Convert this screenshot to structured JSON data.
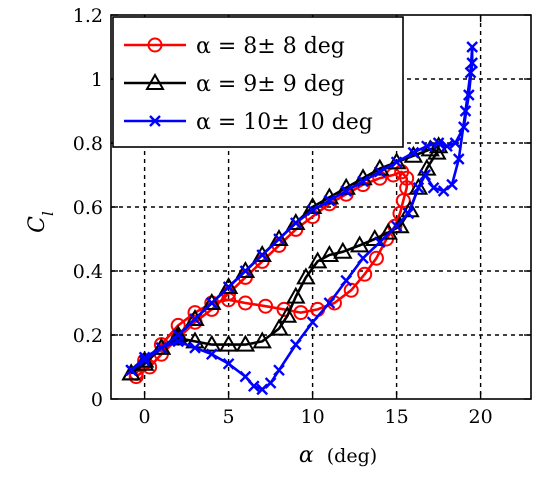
{
  "chart_data": {
    "type": "line",
    "title": "",
    "xlabel": "α",
    "xlabel_unit": "(deg)",
    "ylabel": "C",
    "ylabel_sub": "l",
    "xlim": [
      -2,
      23
    ],
    "ylim": [
      0,
      1.2
    ],
    "x_ticks": [
      0,
      5,
      10,
      15,
      20
    ],
    "y_ticks": [
      0,
      0.2,
      0.4,
      0.6,
      0.8,
      1,
      1.2
    ],
    "x_tick_labels": [
      "0",
      "5",
      "10",
      "15",
      "20"
    ],
    "y_tick_labels": [
      "0",
      "0.2",
      "0.4",
      "0.6",
      "0.8",
      "1",
      "1.2"
    ],
    "grid": true,
    "legend_position": "top-left",
    "series": [
      {
        "name": "α = 8± 8 deg",
        "color": "#ff0000",
        "marker": "circle",
        "points": [
          [
            -0.5,
            0.07
          ],
          [
            0.3,
            0.1
          ],
          [
            1,
            0.14
          ],
          [
            2,
            0.19
          ],
          [
            3,
            0.24
          ],
          [
            4,
            0.28
          ],
          [
            5,
            0.33
          ],
          [
            6,
            0.38
          ],
          [
            7,
            0.43
          ],
          [
            8,
            0.48
          ],
          [
            9,
            0.53
          ],
          [
            10,
            0.57
          ],
          [
            11,
            0.61
          ],
          [
            12,
            0.64
          ],
          [
            13,
            0.67
          ],
          [
            14,
            0.69
          ],
          [
            14.8,
            0.7
          ],
          [
            15.3,
            0.71
          ],
          [
            15.6,
            0.69
          ],
          [
            15.6,
            0.66
          ],
          [
            15.4,
            0.62
          ],
          [
            15.2,
            0.58
          ],
          [
            14.9,
            0.54
          ],
          [
            14.4,
            0.5
          ],
          [
            13.8,
            0.44
          ],
          [
            13.1,
            0.39
          ],
          [
            12.3,
            0.34
          ],
          [
            11.3,
            0.3
          ],
          [
            10.3,
            0.28
          ],
          [
            9.3,
            0.27
          ],
          [
            8.3,
            0.28
          ],
          [
            7.2,
            0.29
          ],
          [
            6,
            0.3
          ],
          [
            5,
            0.31
          ],
          [
            4,
            0.3
          ],
          [
            3,
            0.27
          ],
          [
            2,
            0.23
          ],
          [
            1,
            0.17
          ],
          [
            0,
            0.12
          ],
          [
            -0.5,
            0.08
          ]
        ]
      },
      {
        "name": "α = 9± 9 deg",
        "color": "#000000",
        "marker": "triangle",
        "points": [
          [
            -0.8,
            0.08
          ],
          [
            0,
            0.12
          ],
          [
            1,
            0.16
          ],
          [
            2,
            0.2
          ],
          [
            3,
            0.25
          ],
          [
            4,
            0.3
          ],
          [
            5,
            0.35
          ],
          [
            6,
            0.4
          ],
          [
            7,
            0.45
          ],
          [
            8,
            0.5
          ],
          [
            9,
            0.55
          ],
          [
            10,
            0.6
          ],
          [
            11,
            0.63
          ],
          [
            12,
            0.66
          ],
          [
            13,
            0.69
          ],
          [
            14,
            0.72
          ],
          [
            15,
            0.74
          ],
          [
            16,
            0.76
          ],
          [
            17,
            0.78
          ],
          [
            17.5,
            0.79
          ],
          [
            17.4,
            0.77
          ],
          [
            16.8,
            0.72
          ],
          [
            16.3,
            0.66
          ],
          [
            15.8,
            0.59
          ],
          [
            15.2,
            0.54
          ],
          [
            14.5,
            0.52
          ],
          [
            13.7,
            0.5
          ],
          [
            12.8,
            0.48
          ],
          [
            11.8,
            0.46
          ],
          [
            11,
            0.45
          ],
          [
            10.3,
            0.43
          ],
          [
            9.6,
            0.38
          ],
          [
            9,
            0.32
          ],
          [
            8.5,
            0.26
          ],
          [
            8,
            0.22
          ],
          [
            7,
            0.18
          ],
          [
            6,
            0.17
          ],
          [
            5,
            0.17
          ],
          [
            4,
            0.17
          ],
          [
            3,
            0.18
          ],
          [
            2,
            0.19
          ],
          [
            1,
            0.16
          ],
          [
            0,
            0.11
          ],
          [
            -0.8,
            0.08
          ]
        ]
      },
      {
        "name": "α = 10± 10 deg",
        "color": "#0000ff",
        "marker": "cross",
        "points": [
          [
            -0.8,
            0.09
          ],
          [
            0,
            0.13
          ],
          [
            1,
            0.16
          ],
          [
            2,
            0.2
          ],
          [
            3,
            0.25
          ],
          [
            4,
            0.3
          ],
          [
            5,
            0.35
          ],
          [
            6,
            0.4
          ],
          [
            7,
            0.45
          ],
          [
            8,
            0.5
          ],
          [
            9,
            0.55
          ],
          [
            10,
            0.59
          ],
          [
            11,
            0.62
          ],
          [
            12,
            0.65
          ],
          [
            13,
            0.68
          ],
          [
            14,
            0.71
          ],
          [
            15,
            0.74
          ],
          [
            16,
            0.77
          ],
          [
            16.8,
            0.79
          ],
          [
            17.5,
            0.8
          ],
          [
            18,
            0.79
          ],
          [
            18.5,
            0.8
          ],
          [
            19,
            0.85
          ],
          [
            19.3,
            0.95
          ],
          [
            19.5,
            1.05
          ],
          [
            19.5,
            1.1
          ],
          [
            19.4,
            1.02
          ],
          [
            19.1,
            0.9
          ],
          [
            18.7,
            0.75
          ],
          [
            18.3,
            0.67
          ],
          [
            17.8,
            0.65
          ],
          [
            17.2,
            0.66
          ],
          [
            16.7,
            0.7
          ],
          [
            16.3,
            0.66
          ],
          [
            15.7,
            0.58
          ],
          [
            15,
            0.54
          ],
          [
            14,
            0.49
          ],
          [
            13,
            0.44
          ],
          [
            12,
            0.37
          ],
          [
            11,
            0.3
          ],
          [
            10,
            0.24
          ],
          [
            9,
            0.17
          ],
          [
            8,
            0.09
          ],
          [
            7.5,
            0.05
          ],
          [
            7,
            0.03
          ],
          [
            6.5,
            0.04
          ],
          [
            6,
            0.07
          ],
          [
            5,
            0.11
          ],
          [
            4,
            0.14
          ],
          [
            3,
            0.16
          ],
          [
            2,
            0.18
          ],
          [
            1,
            0.16
          ],
          [
            0,
            0.12
          ],
          [
            -0.8,
            0.09
          ]
        ]
      }
    ]
  }
}
